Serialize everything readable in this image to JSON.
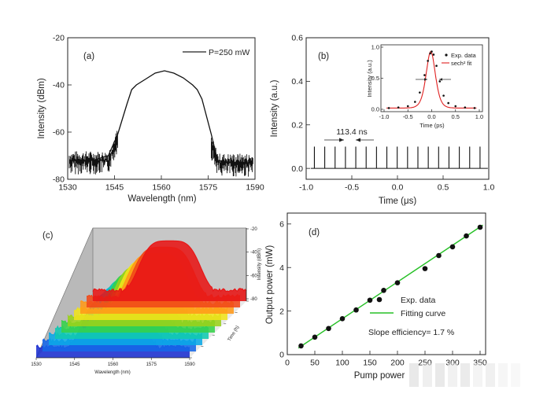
{
  "chart_data": [
    {
      "panel": "(a)",
      "type": "line",
      "xlabel": "Wavelength (nm)",
      "ylabel": "Intensity (dBm)",
      "xlim": [
        1530,
        1590
      ],
      "ylim": [
        -80,
        -20
      ],
      "xticks": [
        "1530",
        "1545",
        "1560",
        "1575",
        "1590"
      ],
      "yticks": [
        "-80",
        "-60",
        "-40",
        "-20"
      ],
      "legend": "P=250 mW",
      "legend_position": "top-right",
      "series": [
        {
          "x": [
            1532,
            1538,
            1543,
            1546,
            1549,
            1550.5,
            1552,
            1555,
            1558,
            1561,
            1564,
            1567,
            1570,
            1571.5,
            1573,
            1576,
            1578,
            1583,
            1589
          ],
          "y": [
            -72,
            -72,
            -70,
            -61,
            -48,
            -42,
            -40,
            -37.5,
            -35,
            -34,
            -35,
            -37,
            -40,
            -42,
            -46,
            -61,
            -72,
            -73,
            -73
          ]
        }
      ]
    },
    {
      "panel": "(b)",
      "type": "line",
      "xlabel": "Time (μs)",
      "ylabel": "Intensity (a.u.)",
      "xlim": [
        -1.0,
        1.0
      ],
      "ylim": [
        -0.05,
        0.6
      ],
      "xticks": [
        "-1.0",
        "-0.5",
        "0.0",
        "0.5",
        "1.0"
      ],
      "yticks": [
        "0.0",
        "0.2",
        "0.4",
        "0.6"
      ],
      "annotation": "113.4 ns",
      "pulse_period_us": 0.1134,
      "pulse_height": 0.1,
      "inset": {
        "type": "scatter+line",
        "xlabel": "Time (ps)",
        "ylabel": "Intensity (a.u.)",
        "xlim": [
          -1.0,
          1.0
        ],
        "ylim": [
          0.0,
          1.0
        ],
        "xticks": [
          "-1.0",
          "-0.5",
          "0.0",
          "0.5",
          "1.0"
        ],
        "yticks": [
          "0.0",
          "0.5",
          "1.0"
        ],
        "legend": [
          "Exp. data",
          "sech² fit"
        ],
        "series": [
          {
            "name": "Exp. data",
            "x": [
              -0.9,
              -0.7,
              -0.5,
              -0.35,
              -0.25,
              -0.15,
              -0.08,
              -0.03,
              0.0,
              0.04,
              0.1,
              0.17,
              0.25,
              0.35,
              0.5,
              0.7,
              0.9
            ],
            "y": [
              0.02,
              0.03,
              0.05,
              0.12,
              0.27,
              0.55,
              0.78,
              0.9,
              0.93,
              0.88,
              0.7,
              0.45,
              0.22,
              0.1,
              0.05,
              0.03,
              0.02
            ]
          },
          {
            "name": "sech² fit",
            "fwhm_ps": 0.23,
            "peak_x": -0.02,
            "peak_y": 0.93
          }
        ]
      }
    },
    {
      "panel": "(c)",
      "type": "area",
      "xlabel": "Wavelength (nm)",
      "zlabel": "Intensity (dBm)",
      "depth_label": "Time (h)",
      "xticks": [
        "1530",
        "1545",
        "1560",
        "1575",
        "1590"
      ],
      "zticks": [
        "-80",
        "-60",
        "-40",
        "-20"
      ],
      "series_colors": [
        "#1a2fd0",
        "#1566e8",
        "#0aa8e6",
        "#10c8b0",
        "#35d24a",
        "#9ad21a",
        "#f0e21a",
        "#ff9818",
        "#f04818",
        "#e81616"
      ]
    },
    {
      "panel": "(d)",
      "type": "scatter",
      "xlabel": "Pump power",
      "ylabel": "Output power (mW)",
      "xlim": [
        0,
        360
      ],
      "ylim": [
        0,
        6.5
      ],
      "xticks": [
        "0",
        "50",
        "100",
        "150",
        "200",
        "250",
        "300",
        "350"
      ],
      "yticks": [
        "0",
        "2",
        "4",
        "6"
      ],
      "legend": [
        "Exp.    data",
        "Fitting curve"
      ],
      "annotation": "Slope efficiency= 1.7 %",
      "series": [
        {
          "name": "Exp.    data",
          "x": [
            25,
            50,
            75,
            100,
            125,
            150,
            175,
            200,
            250,
            275,
            300,
            325,
            350
          ],
          "y": [
            0.4,
            0.8,
            1.2,
            1.65,
            2.05,
            2.5,
            2.95,
            3.3,
            3.95,
            4.55,
            4.95,
            5.45,
            5.85
          ]
        },
        {
          "name": "Fitting curve",
          "x": [
            20,
            355
          ],
          "y": [
            0.3,
            5.95
          ]
        }
      ]
    }
  ]
}
